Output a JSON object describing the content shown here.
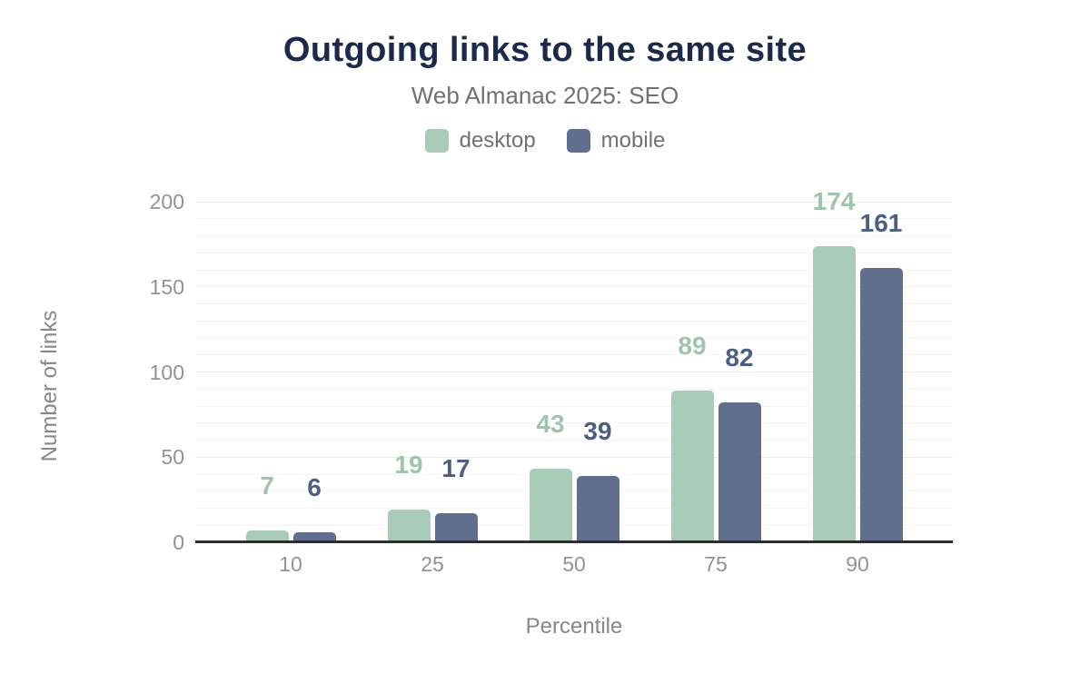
{
  "chart_data": {
    "type": "bar",
    "title": "Outgoing links to the same site",
    "subtitle": "Web Almanac 2025: SEO",
    "xlabel": "Percentile",
    "ylabel": "Number of links",
    "categories": [
      "10",
      "25",
      "50",
      "75",
      "90"
    ],
    "series": [
      {
        "name": "desktop",
        "values": [
          7,
          19,
          43,
          89,
          174
        ],
        "color": "#a9ccb8",
        "label_color": "#9fc4ae"
      },
      {
        "name": "mobile",
        "values": [
          6,
          17,
          39,
          82,
          161
        ],
        "color": "#5f6f8d",
        "label_color": "#4c5f80"
      }
    ],
    "ylim": [
      0,
      200
    ],
    "yticks": [
      0,
      50,
      100,
      150,
      200
    ],
    "minor_grid_step": 10,
    "grid": true,
    "legend_position": "top"
  },
  "styles": {
    "title_color": "#1b2a4a",
    "subtitle_color": "#6e7175",
    "legend_text_color": "#6e7175",
    "tick_color": "#8f9297",
    "axis_title_color": "#84878c",
    "axis_line_color": "#2d2d2d",
    "grid_minor_color": "#f5f5f5",
    "grid_major_color": "#eaeaea",
    "background": "#ffffff"
  }
}
